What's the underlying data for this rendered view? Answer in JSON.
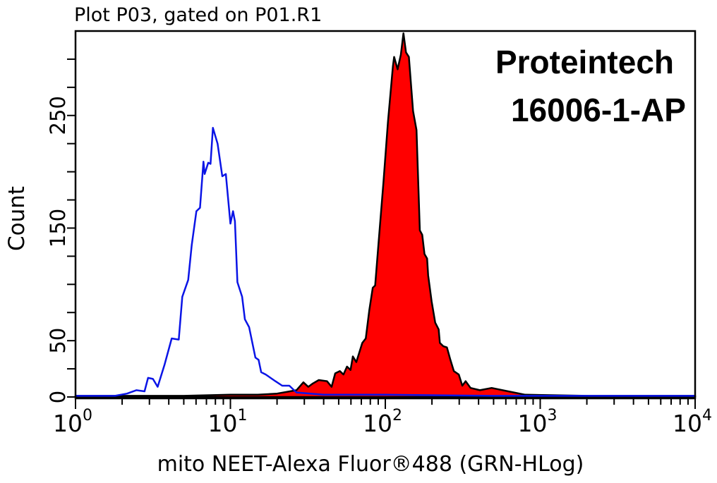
{
  "chart_data": {
    "type": "area",
    "title": "Plot P03, gated on P01.R1",
    "xlabel": "mito NEET-Alexa Fluor®488 (GRN-HLog)",
    "ylabel": "Count",
    "xscale": "log",
    "xlim": [
      1,
      10000
    ],
    "ylim": [
      0,
      325
    ],
    "x_tick_labels": [
      {
        "base": "10",
        "exp": "0"
      },
      {
        "base": "10",
        "exp": "1"
      },
      {
        "base": "10",
        "exp": "2"
      },
      {
        "base": "10",
        "exp": "3"
      },
      {
        "base": "10",
        "exp": "4"
      }
    ],
    "y_tick_labels": [
      "0",
      "50",
      "150",
      "250"
    ],
    "y_minor_step": 25,
    "y_minor_max": 300,
    "grid": false,
    "annotation": [
      "Proteintech",
      "16006-1-AP"
    ],
    "series": [
      {
        "style": "outline",
        "color": "#0a14e6",
        "points": [
          [
            1,
            1
          ],
          [
            1.8,
            1
          ],
          [
            2.15,
            3
          ],
          [
            2.47,
            6
          ],
          [
            2.79,
            5
          ],
          [
            2.94,
            17
          ],
          [
            3.16,
            16
          ],
          [
            3.39,
            9
          ],
          [
            3.76,
            29
          ],
          [
            4.18,
            52
          ],
          [
            4.64,
            51
          ],
          [
            4.89,
            89
          ],
          [
            5.34,
            104
          ],
          [
            5.63,
            135
          ],
          [
            6.03,
            165
          ],
          [
            6.36,
            168
          ],
          [
            6.7,
            209
          ],
          [
            6.82,
            198
          ],
          [
            7.19,
            208
          ],
          [
            7.44,
            207
          ],
          [
            7.71,
            239
          ],
          [
            8.26,
            225
          ],
          [
            8.86,
            196
          ],
          [
            9.34,
            198
          ],
          [
            10.0,
            154
          ],
          [
            10.4,
            165
          ],
          [
            10.7,
            156
          ],
          [
            11.1,
            102
          ],
          [
            11.9,
            89
          ],
          [
            12.4,
            69
          ],
          [
            13.2,
            62
          ],
          [
            14.5,
            35
          ],
          [
            15.2,
            33
          ],
          [
            15.8,
            22
          ],
          [
            16.9,
            20
          ],
          [
            19.5,
            14
          ],
          [
            21.6,
            10
          ],
          [
            24.0,
            10
          ],
          [
            26.7,
            4
          ],
          [
            32.9,
            3
          ],
          [
            40,
            2
          ],
          [
            100,
            2
          ],
          [
            500,
            1
          ],
          [
            10000,
            1
          ]
        ]
      },
      {
        "style": "filled",
        "color": "#ff0000",
        "outline": "#000000",
        "points": [
          [
            1,
            1
          ],
          [
            5,
            1
          ],
          [
            10,
            2
          ],
          [
            15,
            2
          ],
          [
            20,
            3
          ],
          [
            26.7,
            6
          ],
          [
            29.6,
            13
          ],
          [
            31.8,
            9
          ],
          [
            34.1,
            12
          ],
          [
            37.2,
            15
          ],
          [
            42.0,
            14
          ],
          [
            45.0,
            9
          ],
          [
            47.5,
            21
          ],
          [
            50.9,
            23
          ],
          [
            53.7,
            20
          ],
          [
            56.6,
            27
          ],
          [
            59.6,
            24
          ],
          [
            61.7,
            36
          ],
          [
            65.0,
            31
          ],
          [
            71.0,
            48
          ],
          [
            74.8,
            52
          ],
          [
            78.8,
            77
          ],
          [
            83.0,
            97
          ],
          [
            86.0,
            99
          ],
          [
            90.7,
            139
          ],
          [
            97.3,
            191
          ],
          [
            104,
            244
          ],
          [
            112,
            294
          ],
          [
            114,
            302
          ],
          [
            120,
            291
          ],
          [
            126,
            304
          ],
          [
            131,
            323
          ],
          [
            136,
            306
          ],
          [
            142,
            302
          ],
          [
            151,
            254
          ],
          [
            159,
            237
          ],
          [
            167,
            148
          ],
          [
            173,
            144
          ],
          [
            179,
            127
          ],
          [
            186,
            123
          ],
          [
            189,
            108
          ],
          [
            199,
            85
          ],
          [
            210,
            66
          ],
          [
            221,
            60
          ],
          [
            225,
            48
          ],
          [
            237,
            45
          ],
          [
            250,
            44
          ],
          [
            263,
            33
          ],
          [
            277,
            23
          ],
          [
            298,
            20
          ],
          [
            314,
            10
          ],
          [
            330,
            14
          ],
          [
            355,
            8
          ],
          [
            408,
            6
          ],
          [
            486,
            8
          ],
          [
            621,
            5
          ],
          [
            800,
            2
          ],
          [
            2000,
            1
          ],
          [
            10000,
            1
          ]
        ]
      }
    ]
  }
}
